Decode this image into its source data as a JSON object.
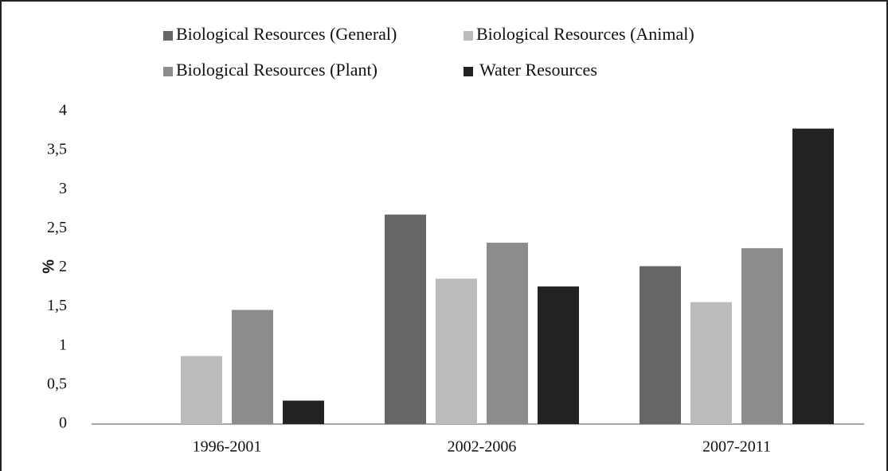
{
  "chart_data": {
    "type": "bar",
    "y_label": "%",
    "categories": [
      "1996-2001",
      "2002-2006",
      "2007-2011"
    ],
    "series": [
      {
        "name": "Biological Resources (General)",
        "color": "#666666",
        "values": [
          0,
          2.68,
          2.02
        ]
      },
      {
        "name": "Biological Resources (Animal)",
        "color": "#bbbbbb",
        "values": [
          0.87,
          1.86,
          1.56
        ]
      },
      {
        "name": "Biological Resources (Plant)",
        "color": "#8c8c8c",
        "values": [
          1.46,
          2.32,
          2.25
        ]
      },
      {
        "name": "Water Resources",
        "color": "#222222",
        "values": [
          0.3,
          1.76,
          3.78
        ]
      }
    ],
    "ylim": [
      0,
      4
    ],
    "yticks": [
      0,
      {
        "value": 0.5,
        "label": "0,5"
      },
      1,
      {
        "value": 1.5,
        "label": "1,5"
      },
      2,
      {
        "value": 2.5,
        "label": "2,5"
      },
      3,
      {
        "value": 3.5,
        "label": "3,5"
      },
      4
    ],
    "legend": "top",
    "grid": false
  }
}
